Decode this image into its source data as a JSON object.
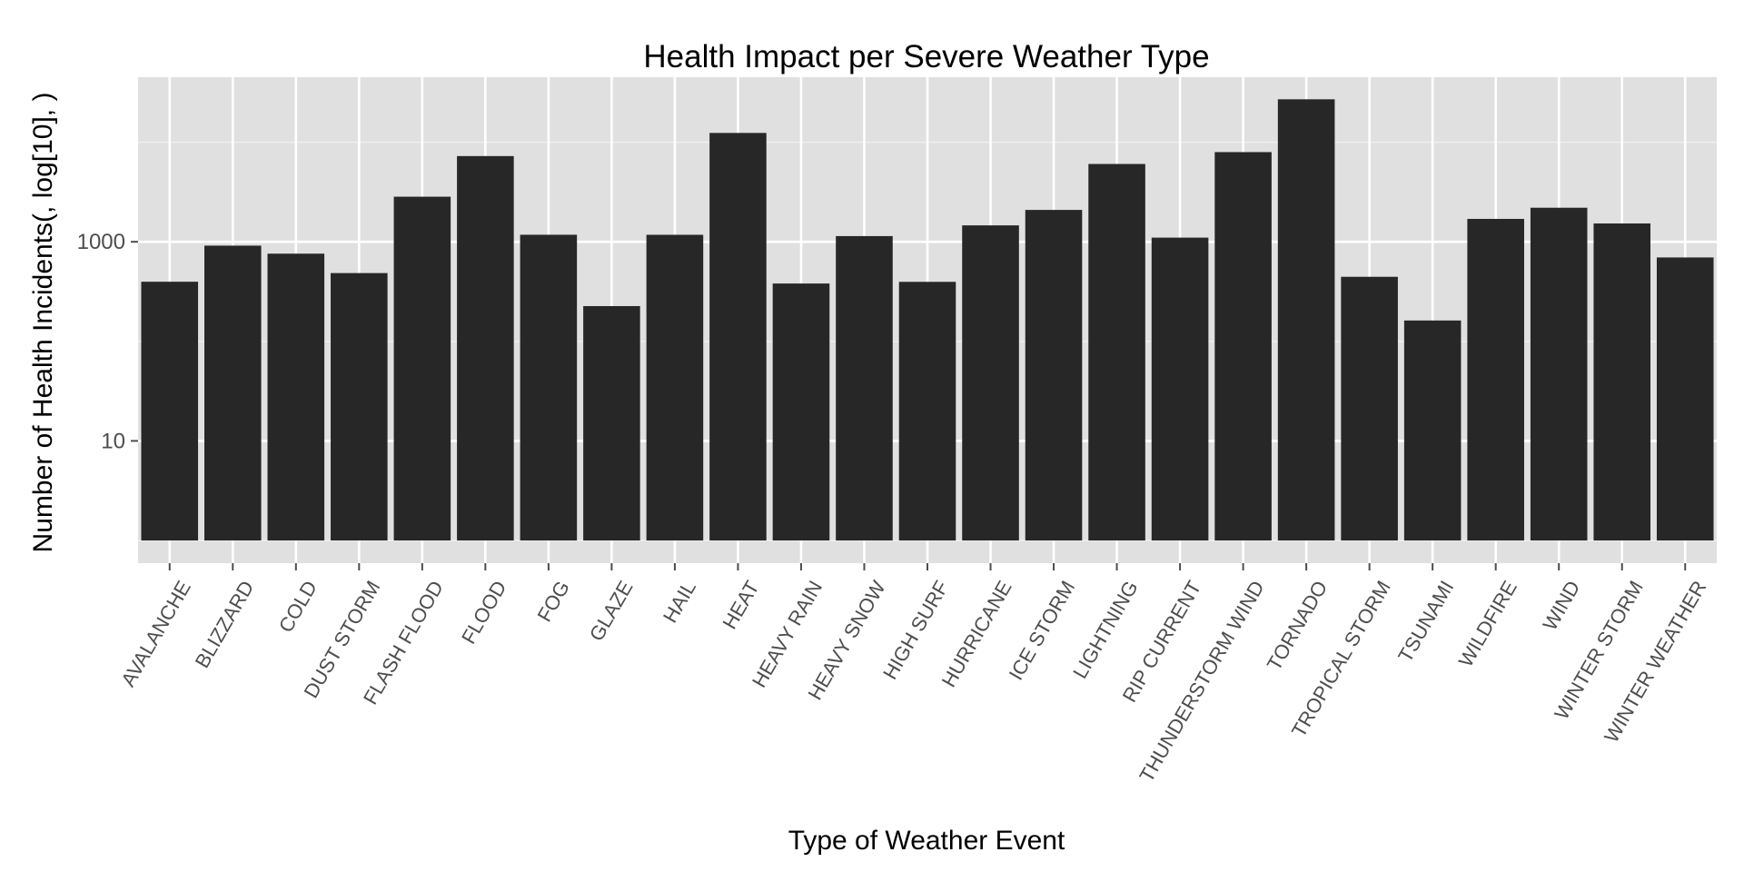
{
  "chart_data": {
    "type": "bar",
    "title": "Health Impact per Severe Weather Type",
    "xlabel": "Type of Weather Event",
    "ylabel": "Number of Health Incidents(, log[10], )",
    "yscale": "log10",
    "ylim": [
      1,
      45000
    ],
    "yticks": [
      10,
      1000
    ],
    "ytick_labels": [
      "10",
      "1000"
    ],
    "grid": true,
    "categories": [
      "AVALANCHE",
      "BLIZZARD",
      "COLD",
      "DUST STORM",
      "FLASH FLOOD",
      "FLOOD",
      "FOG",
      "GLAZE",
      "HAIL",
      "HEAT",
      "HEAVY RAIN",
      "HEAVY SNOW",
      "HIGH SURF",
      "HURRICANE",
      "ICE STORM",
      "LIGHTNING",
      "RIP CURRENT",
      "THUNDERSTORM WIND",
      "TORNADO",
      "TROPICAL STORM",
      "TSUNAMI",
      "WILDFIRE",
      "WIND",
      "WINTER STORM",
      "WINTER WEATHER"
    ],
    "values": [
      397,
      915,
      760,
      485,
      2837,
      7260,
      1177,
      226,
      1176,
      12400,
      381,
      1141,
      396,
      1462,
      2090,
      6050,
      1101,
      7960,
      27000,
      445,
      162,
      1698,
      2198,
      1528,
      696
    ],
    "colors": {
      "panel": "#e0e0e0",
      "grid_major": "#ffffff",
      "grid_minor": "#f0f0f0",
      "bar": "#272727",
      "tick": "#4d4d4d"
    }
  }
}
